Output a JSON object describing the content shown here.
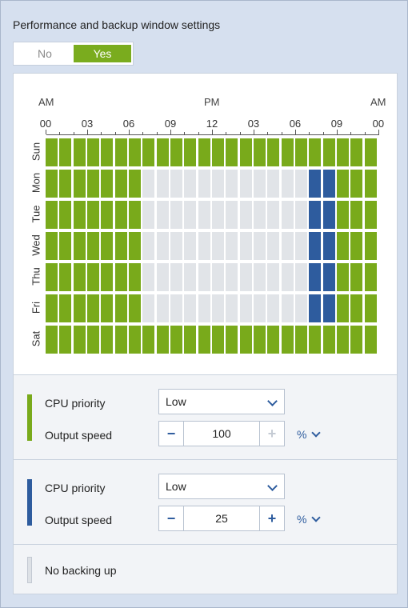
{
  "title": "Performance and backup window settings",
  "toggle": {
    "no_label": "No",
    "yes_label": "Yes",
    "selected": "Yes"
  },
  "schedule": {
    "am_label": "AM",
    "pm_label": "PM",
    "am_end_label": "AM",
    "hour_labels": [
      "00",
      "03",
      "06",
      "09",
      "12",
      "03",
      "06",
      "09",
      "00"
    ],
    "days": [
      "Sun",
      "Mon",
      "Tue",
      "Wed",
      "Thu",
      "Fri",
      "Sat"
    ],
    "legend_note": "g = first settings (green), b = second settings (blue), e = no backing up (gray)",
    "rows": [
      "gggggggggggggggggggggggg",
      "gggggggeeeeeeeeeeeebbggg",
      "gggggggeeeeeeeeeeeebbggg",
      "gggggggeeeeeeeeeeeebbggg",
      "gggggggeeeeeeeeeeeebbggg",
      "gggggggeeeeeeeeeeeebbggg",
      "gggggggggggggggggggggggg"
    ]
  },
  "colors": {
    "green": "#79aa1b",
    "blue": "#2e5c9e",
    "gray": "#d6d9de"
  },
  "green_settings": {
    "cpu_label": "CPU priority",
    "cpu_value": "Low",
    "speed_label": "Output speed",
    "speed_value": "100",
    "minus": "−",
    "plus": "+",
    "unit": "%"
  },
  "blue_settings": {
    "cpu_label": "CPU priority",
    "cpu_value": "Low",
    "speed_label": "Output speed",
    "speed_value": "25",
    "minus": "−",
    "plus": "+",
    "unit": "%"
  },
  "no_backup": {
    "label": "No backing up"
  }
}
